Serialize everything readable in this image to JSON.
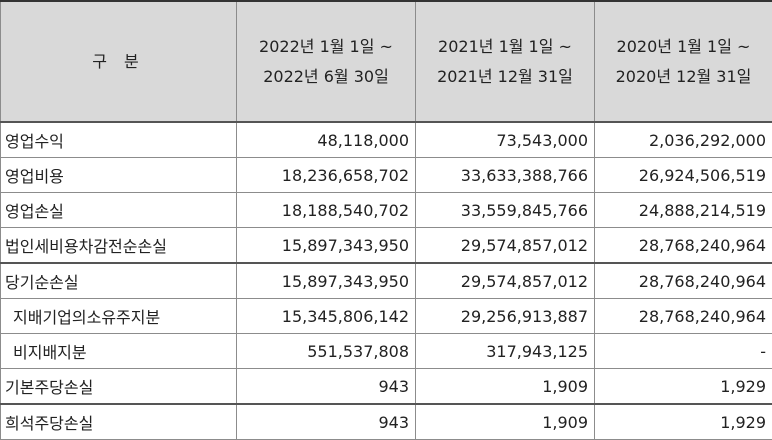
{
  "header": {
    "category": "구 분",
    "periods": [
      {
        "line1": "2022년 1월 1일 ~",
        "line2": "2022년 6월 30일"
      },
      {
        "line1": "2021년 1월 1일 ~",
        "line2": "2021년 12월 31일"
      },
      {
        "line1": "2020년 1월 1일 ~",
        "line2": "2020년 12월 31일"
      }
    ]
  },
  "rows": [
    {
      "label": "영업수익",
      "values": [
        "48,118,000",
        "73,543,000",
        "2,036,292,000"
      ]
    },
    {
      "label": "영업비용",
      "values": [
        "18,236,658,702",
        "33,633,388,766",
        "26,924,506,519"
      ]
    },
    {
      "label": "영업손실",
      "values": [
        "18,188,540,702",
        "33,559,845,766",
        "24,888,214,519"
      ]
    },
    {
      "label": "법인세비용차감전순손실",
      "values": [
        "15,897,343,950",
        "29,574,857,012",
        "28,768,240,964"
      ]
    },
    {
      "label": "당기순손실",
      "values": [
        "15,897,343,950",
        "29,574,857,012",
        "28,768,240,964"
      ]
    },
    {
      "label": "지배기업의소유주지분",
      "values": [
        "15,345,806,142",
        "29,256,913,887",
        "28,768,240,964"
      ]
    },
    {
      "label": "비지배지분",
      "values": [
        "551,537,808",
        "317,943,125",
        "-"
      ]
    },
    {
      "label": "기본주당손실",
      "values": [
        "943",
        "1,909",
        "1,929"
      ]
    },
    {
      "label": "희석주당손실",
      "values": [
        "943",
        "1,909",
        "1,929"
      ]
    }
  ]
}
